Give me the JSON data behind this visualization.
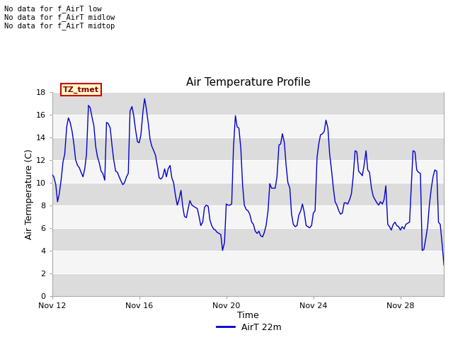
{
  "title": "Air Temperature Profile",
  "xlabel": "Time",
  "ylabel": "Air Termperature (C)",
  "ylim": [
    0,
    18
  ],
  "yticks": [
    0,
    2,
    4,
    6,
    8,
    10,
    12,
    14,
    16,
    18
  ],
  "line_color": "#0000cc",
  "line_label": "AirT 22m",
  "bg_color": "#ffffff",
  "plot_bg_color": "#ebebeb",
  "band_light": "#f5f5f5",
  "band_dark": "#dcdcdc",
  "no_data_texts": [
    "No data for f_AirT low",
    "No data for f_AirT midlow",
    "No data for f_AirT midtop"
  ],
  "legend_label_box": "TZ_tmet",
  "xtick_labels": [
    "Nov 12",
    "Nov 16",
    "Nov 20",
    "Nov 24",
    "Nov 28"
  ],
  "xtick_positions": [
    0,
    4,
    8,
    12,
    16
  ],
  "xlim": [
    0,
    18
  ],
  "time_series_x": [
    0.0,
    0.08,
    0.17,
    0.25,
    0.33,
    0.42,
    0.5,
    0.58,
    0.67,
    0.75,
    0.83,
    0.92,
    1.0,
    1.08,
    1.17,
    1.25,
    1.33,
    1.42,
    1.5,
    1.58,
    1.67,
    1.75,
    1.83,
    1.92,
    2.0,
    2.08,
    2.17,
    2.25,
    2.33,
    2.42,
    2.5,
    2.58,
    2.67,
    2.75,
    2.83,
    2.92,
    3.0,
    3.08,
    3.17,
    3.25,
    3.33,
    3.42,
    3.5,
    3.58,
    3.67,
    3.75,
    3.83,
    3.92,
    4.0,
    4.08,
    4.17,
    4.25,
    4.33,
    4.42,
    4.5,
    4.58,
    4.67,
    4.75,
    4.83,
    4.92,
    5.0,
    5.08,
    5.17,
    5.25,
    5.33,
    5.42,
    5.5,
    5.58,
    5.67,
    5.75,
    5.83,
    5.92,
    6.0,
    6.08,
    6.17,
    6.25,
    6.33,
    6.42,
    6.5,
    6.58,
    6.67,
    6.75,
    6.83,
    6.92,
    7.0,
    7.08,
    7.17,
    7.25,
    7.33,
    7.42,
    7.5,
    7.58,
    7.67,
    7.75,
    7.83,
    7.92,
    8.0,
    8.08,
    8.17,
    8.25,
    8.33,
    8.42,
    8.5,
    8.58,
    8.67,
    8.75,
    8.83,
    8.92,
    9.0,
    9.08,
    9.17,
    9.25,
    9.33,
    9.42,
    9.5,
    9.58,
    9.67,
    9.75,
    9.83,
    9.92,
    10.0,
    10.08,
    10.17,
    10.25,
    10.33,
    10.42,
    10.5,
    10.58,
    10.67,
    10.75,
    10.83,
    10.92,
    11.0,
    11.08,
    11.17,
    11.25,
    11.33,
    11.42,
    11.5,
    11.58,
    11.67,
    11.75,
    11.83,
    11.92,
    12.0,
    12.08,
    12.17,
    12.25,
    12.33,
    12.42,
    12.5,
    12.58,
    12.67,
    12.75,
    12.83,
    12.92,
    13.0,
    13.08,
    13.17,
    13.25,
    13.33,
    13.42,
    13.5,
    13.58,
    13.67,
    13.75,
    13.83,
    13.92,
    14.0,
    14.08,
    14.17,
    14.25,
    14.33,
    14.42,
    14.5,
    14.58,
    14.67,
    14.75,
    14.83,
    14.92,
    15.0,
    15.08,
    15.17,
    15.25,
    15.33,
    15.42,
    15.5,
    15.58,
    15.67,
    15.75,
    15.83,
    15.92,
    16.0,
    16.08,
    16.17,
    16.25,
    16.33,
    16.42,
    16.5,
    16.58,
    16.67,
    16.75,
    16.83,
    16.92,
    17.0,
    17.08,
    17.17,
    17.25,
    17.33,
    17.42,
    17.5,
    17.58,
    17.67,
    17.75,
    17.83,
    17.92,
    18.0
  ],
  "time_series_y": [
    10.7,
    10.5,
    9.8,
    8.3,
    9.0,
    10.3,
    11.8,
    12.5,
    14.9,
    15.7,
    15.3,
    14.5,
    13.4,
    12.0,
    11.5,
    11.3,
    10.9,
    10.5,
    11.2,
    12.5,
    16.8,
    16.6,
    15.8,
    15.0,
    13.2,
    12.3,
    11.7,
    11.0,
    10.8,
    10.2,
    15.3,
    15.2,
    14.8,
    13.3,
    12.0,
    11.0,
    10.9,
    10.5,
    10.1,
    9.8,
    10.0,
    10.5,
    10.8,
    16.3,
    16.7,
    15.9,
    14.7,
    13.6,
    13.5,
    14.2,
    16.2,
    17.4,
    16.5,
    15.2,
    13.8,
    13.2,
    12.8,
    12.4,
    11.5,
    10.4,
    10.3,
    10.5,
    11.2,
    10.5,
    11.2,
    11.5,
    10.4,
    10.0,
    8.8,
    8.0,
    8.5,
    9.3,
    7.9,
    7.0,
    6.9,
    7.7,
    8.4,
    8.0,
    7.9,
    7.8,
    7.7,
    7.0,
    6.2,
    6.5,
    7.8,
    8.0,
    7.9,
    6.7,
    6.2,
    5.9,
    5.8,
    5.6,
    5.5,
    5.4,
    4.0,
    4.7,
    8.1,
    8.0,
    8.0,
    8.1,
    13.0,
    15.9,
    14.9,
    14.8,
    13.0,
    9.8,
    8.0,
    7.6,
    7.5,
    7.2,
    6.5,
    6.3,
    5.7,
    5.5,
    5.7,
    5.3,
    5.2,
    5.6,
    6.2,
    7.5,
    9.9,
    9.5,
    9.5,
    9.5,
    10.5,
    13.3,
    13.4,
    14.3,
    13.5,
    11.5,
    10.0,
    9.5,
    7.2,
    6.3,
    6.1,
    6.2,
    7.1,
    7.5,
    8.1,
    7.4,
    6.2,
    6.1,
    6.0,
    6.2,
    7.3,
    7.5,
    12.2,
    13.4,
    14.2,
    14.3,
    14.5,
    15.5,
    14.8,
    12.5,
    11.2,
    9.5,
    8.3,
    8.0,
    7.5,
    7.2,
    7.3,
    8.2,
    8.2,
    8.1,
    8.5,
    9.0,
    10.5,
    12.8,
    12.7,
    11.0,
    10.8,
    10.6,
    11.5,
    12.8,
    11.1,
    10.9,
    9.5,
    8.8,
    8.5,
    8.2,
    8.0,
    8.3,
    8.1,
    8.5,
    9.7,
    6.3,
    6.1,
    5.8,
    6.3,
    6.5,
    6.2,
    6.1,
    5.8,
    6.1,
    5.9,
    6.3,
    6.4,
    6.5,
    9.7,
    12.8,
    12.7,
    11.1,
    10.9,
    10.8,
    4.0,
    4.1,
    5.1,
    6.1,
    8.0,
    9.5,
    10.5,
    11.1,
    11.0,
    6.5,
    6.3,
    4.5,
    2.7
  ]
}
